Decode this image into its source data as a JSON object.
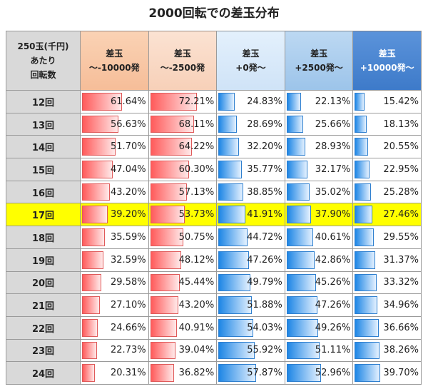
{
  "chart_data": {
    "type": "table",
    "title": "2000回転での差玉分布",
    "row_header_lines": [
      "250玉(千円)",
      "あたり",
      "回転数"
    ],
    "columns": [
      {
        "lines": [
          "差玉",
          "～-10000発"
        ],
        "color": "#ff5b5b"
      },
      {
        "lines": [
          "差玉",
          "～-2500発"
        ],
        "color": "#ff5b5b"
      },
      {
        "lines": [
          "差玉",
          "+0発～"
        ],
        "color": "#1e86e5"
      },
      {
        "lines": [
          "差玉",
          "+2500発～"
        ],
        "color": "#1e86e5"
      },
      {
        "lines": [
          "差玉",
          "+10000発～"
        ],
        "color": "#1e86e5"
      }
    ],
    "highlight_row": "17回",
    "highlight_color": "#ffff00",
    "rows": [
      {
        "label": "12回",
        "values": [
          61.64,
          72.21,
          24.83,
          22.13,
          15.42
        ]
      },
      {
        "label": "13回",
        "values": [
          56.63,
          68.11,
          28.69,
          25.66,
          18.13
        ]
      },
      {
        "label": "14回",
        "values": [
          51.7,
          64.22,
          32.2,
          28.93,
          20.55
        ]
      },
      {
        "label": "15回",
        "values": [
          47.04,
          60.3,
          35.77,
          32.17,
          22.95
        ]
      },
      {
        "label": "16回",
        "values": [
          43.2,
          57.13,
          38.85,
          35.02,
          25.28
        ]
      },
      {
        "label": "17回",
        "values": [
          39.2,
          53.73,
          41.91,
          37.9,
          27.46
        ]
      },
      {
        "label": "18回",
        "values": [
          35.59,
          50.75,
          44.72,
          40.61,
          29.55
        ]
      },
      {
        "label": "19回",
        "values": [
          32.59,
          48.12,
          47.26,
          42.86,
          31.37
        ]
      },
      {
        "label": "20回",
        "values": [
          29.58,
          45.44,
          49.79,
          45.26,
          33.32
        ]
      },
      {
        "label": "21回",
        "values": [
          27.1,
          43.2,
          51.88,
          47.26,
          34.96
        ]
      },
      {
        "label": "22回",
        "values": [
          24.66,
          40.91,
          54.03,
          49.26,
          36.66
        ]
      },
      {
        "label": "23回",
        "values": [
          22.73,
          39.04,
          55.92,
          51.11,
          38.26
        ]
      },
      {
        "label": "24回",
        "values": [
          20.31,
          36.82,
          57.87,
          52.96,
          39.7
        ]
      }
    ]
  }
}
